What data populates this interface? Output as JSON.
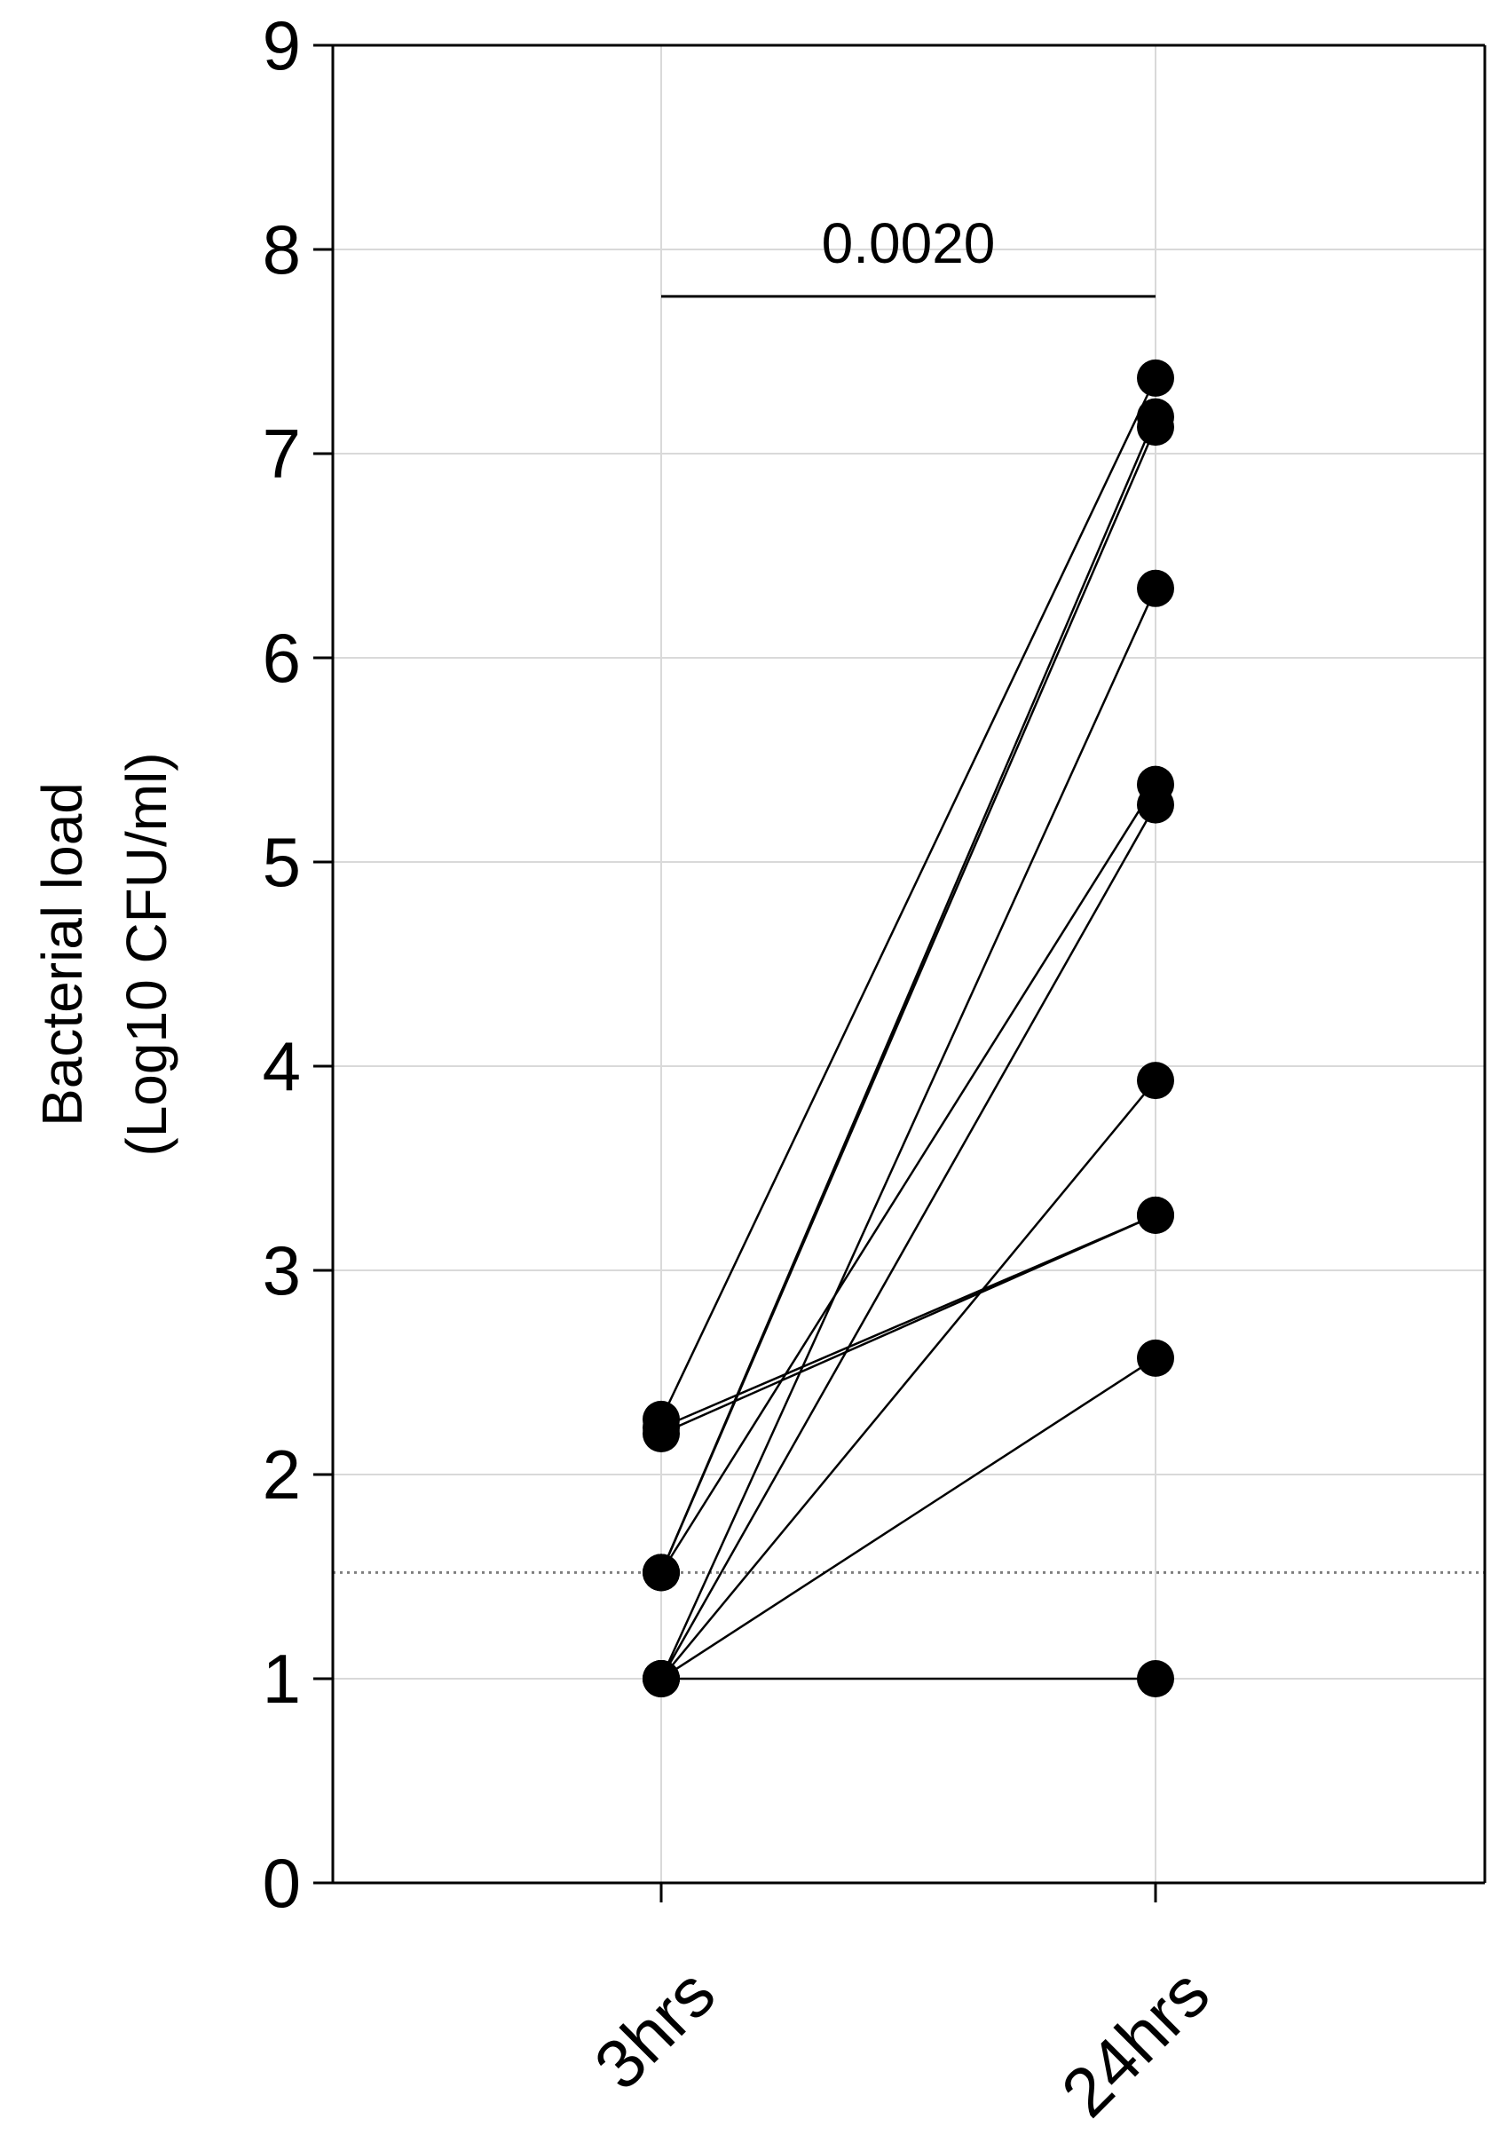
{
  "chart_data": {
    "type": "line",
    "subtype": "paired-before-after",
    "title": "",
    "xlabel": "",
    "ylabel_lines": [
      "Bacterial load",
      "(Log10 CFU/ml)"
    ],
    "categories": [
      "3hrs",
      "24hrs"
    ],
    "ylim": [
      0,
      9
    ],
    "yticks": [
      "0",
      "1",
      "2",
      "3",
      "4",
      "5",
      "6",
      "7",
      "8",
      "9"
    ],
    "grid": true,
    "detection_limit": 1.52,
    "significance": {
      "from": "3hrs",
      "to": "24hrs",
      "label": "0.0020",
      "y": 7.77
    },
    "pairs": [
      {
        "values": [
          2.27,
          7.37
        ]
      },
      {
        "values": [
          1.52,
          7.18
        ]
      },
      {
        "values": [
          1.52,
          7.13
        ]
      },
      {
        "values": [
          1.0,
          6.34
        ]
      },
      {
        "values": [
          1.52,
          5.38
        ]
      },
      {
        "values": [
          1.0,
          5.28
        ]
      },
      {
        "values": [
          1.0,
          3.93
        ]
      },
      {
        "values": [
          2.2,
          3.27
        ]
      },
      {
        "values": [
          2.23,
          3.27
        ]
      },
      {
        "values": [
          1.0,
          2.57
        ]
      },
      {
        "values": [
          1.0,
          1.0
        ]
      }
    ]
  },
  "colors": {
    "axis": "#000000",
    "grid": "#d9d9d9",
    "marker": "#000000",
    "line": "#000000",
    "limit": "#7f7f7f"
  }
}
